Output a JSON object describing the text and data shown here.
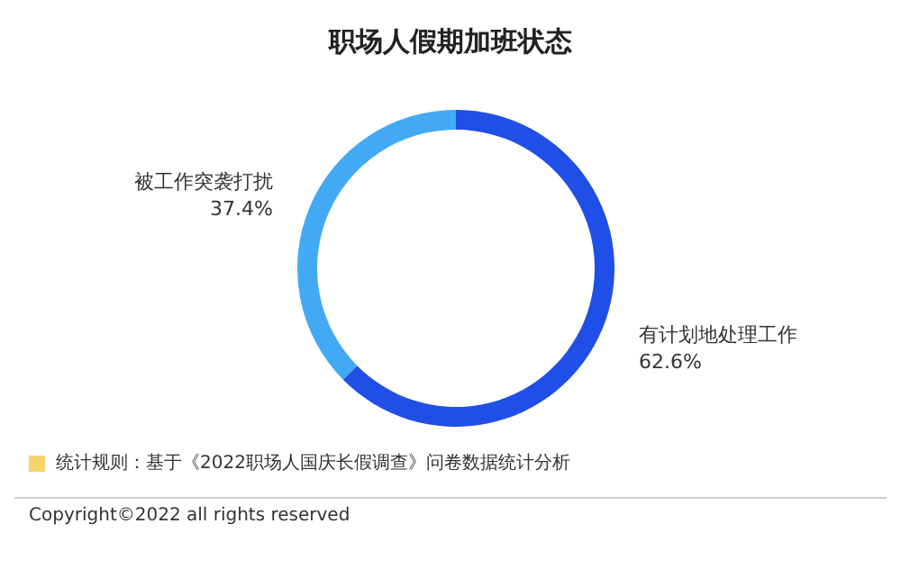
{
  "chart_data": {
    "type": "donut",
    "title": "职场人假期加班状态",
    "categories": [
      "有计划地处理工作",
      "被工作突袭打扰"
    ],
    "values": [
      62.6,
      37.4
    ],
    "value_labels": [
      "62.6%",
      "37.4%"
    ],
    "colors": [
      "#1f4fe6",
      "#42aaf5"
    ],
    "annotations": [
      "统计规则：基于《2022职场人国庆长假调查》问卷数据统计分析",
      "Copyright©2022 all rights reserved"
    ]
  }
}
